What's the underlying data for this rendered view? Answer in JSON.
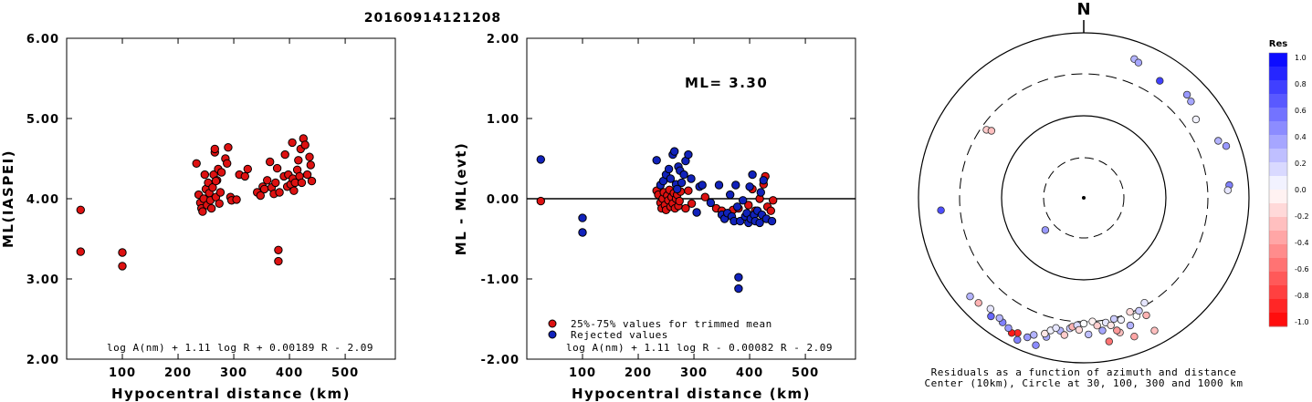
{
  "title": "20160914121208",
  "charts": [
    {
      "type": "scatter",
      "xlabel": "Hypocentral distance (km)",
      "ylabel": "ML(IASPEI)",
      "xlim": [
        0,
        590
      ],
      "ylim": [
        2.0,
        6.0
      ],
      "xticks": [
        100,
        200,
        300,
        400,
        500
      ],
      "xtick_labels": [
        "100",
        "200",
        "300",
        "400",
        "500"
      ],
      "yticks": [
        2.0,
        3.0,
        4.0,
        5.0,
        6.0
      ],
      "ytick_labels": [
        "2.00",
        "3.00",
        "4.00",
        "5.00",
        "6.00"
      ],
      "formula": "log A(nm) + 1.11 log R + 0.00189 R - 2.09",
      "points": [
        [
          25,
          3.86
        ],
        [
          25,
          3.34
        ],
        [
          100,
          3.33
        ],
        [
          100,
          3.16
        ],
        [
          233,
          4.44
        ],
        [
          237,
          4.05
        ],
        [
          240,
          3.95
        ],
        [
          242,
          3.88
        ],
        [
          244,
          3.84
        ],
        [
          246,
          4.0
        ],
        [
          248,
          4.3
        ],
        [
          250,
          4.12
        ],
        [
          252,
          3.92
        ],
        [
          254,
          4.2
        ],
        [
          256,
          4.07
        ],
        [
          258,
          3.98
        ],
        [
          260,
          3.88
        ],
        [
          262,
          4.14
        ],
        [
          264,
          4.3
        ],
        [
          266,
          4.58
        ],
        [
          266,
          4.62
        ],
        [
          268,
          4.02
        ],
        [
          270,
          4.23
        ],
        [
          272,
          4.37
        ],
        [
          274,
          3.94
        ],
        [
          276,
          4.08
        ],
        [
          278,
          4.33
        ],
        [
          268,
          4.22
        ],
        [
          285,
          4.5
        ],
        [
          288,
          4.44
        ],
        [
          290,
          4.64
        ],
        [
          294,
          4.02
        ],
        [
          296,
          3.98
        ],
        [
          305,
          3.99
        ],
        [
          310,
          4.3
        ],
        [
          320,
          4.28
        ],
        [
          325,
          4.37
        ],
        [
          342,
          4.08
        ],
        [
          348,
          4.04
        ],
        [
          352,
          4.15
        ],
        [
          355,
          4.12
        ],
        [
          360,
          4.23
        ],
        [
          365,
          4.46
        ],
        [
          368,
          4.14
        ],
        [
          372,
          4.06
        ],
        [
          375,
          4.2
        ],
        [
          378,
          4.38
        ],
        [
          380,
          3.36
        ],
        [
          380,
          3.22
        ],
        [
          382,
          4.08
        ],
        [
          390,
          4.28
        ],
        [
          392,
          4.55
        ],
        [
          396,
          4.15
        ],
        [
          398,
          4.3
        ],
        [
          402,
          4.18
        ],
        [
          405,
          4.7
        ],
        [
          406,
          4.25
        ],
        [
          408,
          4.1
        ],
        [
          410,
          4.2
        ],
        [
          414,
          4.36
        ],
        [
          416,
          4.48
        ],
        [
          418,
          4.28
        ],
        [
          420,
          4.62
        ],
        [
          422,
          4.2
        ],
        [
          425,
          4.75
        ],
        [
          428,
          4.67
        ],
        [
          432,
          4.3
        ],
        [
          436,
          4.52
        ],
        [
          438,
          4.42
        ],
        [
          440,
          4.22
        ]
      ]
    },
    {
      "type": "scatter",
      "xlabel": "Hypocentral distance (km)",
      "ylabel": "ML - ML(evt)",
      "xlim": [
        0,
        590
      ],
      "ylim": [
        -2.0,
        2.0
      ],
      "xticks": [
        100,
        200,
        300,
        400,
        500
      ],
      "xtick_labels": [
        "100",
        "200",
        "300",
        "400",
        "500"
      ],
      "yticks": [
        -2.0,
        -1.0,
        0.0,
        1.0,
        2.0
      ],
      "ytick_labels": [
        "-2.00",
        "-1.00",
        "0.00",
        "1.00",
        "2.00"
      ],
      "annotation": "ML= 3.30",
      "legend": [
        "25%-75% values for trimmed mean",
        "Rejected values"
      ],
      "formula": "log A(nm) + 1.11 log R - 0.00082 R - 2.09",
      "series": [
        {
          "color": "#dd1111",
          "points": [
            [
              25,
              -0.03
            ],
            [
              233,
              0.1
            ],
            [
              236,
              0.05
            ],
            [
              240,
              -0.05
            ],
            [
              242,
              -0.12
            ],
            [
              244,
              0.0
            ],
            [
              246,
              0.08
            ],
            [
              248,
              -0.08
            ],
            [
              250,
              -0.14
            ],
            [
              252,
              0.04
            ],
            [
              254,
              -0.02
            ],
            [
              256,
              0.11
            ],
            [
              258,
              -0.1
            ],
            [
              260,
              0.02
            ],
            [
              262,
              -0.06
            ],
            [
              264,
              0.07
            ],
            [
              266,
              -0.12
            ],
            [
              268,
              0.0
            ],
            [
              270,
              0.05
            ],
            [
              272,
              -0.09
            ],
            [
              274,
              -0.03
            ],
            [
              276,
              0.09
            ],
            [
              285,
              -0.12
            ],
            [
              290,
              0.1
            ],
            [
              296,
              -0.06
            ],
            [
              320,
              0.02
            ],
            [
              340,
              -0.12
            ],
            [
              350,
              -0.15
            ],
            [
              360,
              -0.18
            ],
            [
              370,
              -0.14
            ],
            [
              380,
              -0.12
            ],
            [
              398,
              -0.08
            ],
            [
              405,
              0.12
            ],
            [
              410,
              -0.15
            ],
            [
              418,
              0.0
            ],
            [
              425,
              0.18
            ],
            [
              428,
              0.28
            ],
            [
              432,
              -0.1
            ],
            [
              438,
              -0.15
            ],
            [
              442,
              -0.02
            ]
          ]
        },
        {
          "color": "#1122bb",
          "points": [
            [
              25,
              0.49
            ],
            [
              100,
              -0.24
            ],
            [
              100,
              -0.42
            ],
            [
              233,
              0.48
            ],
            [
              240,
              0.17
            ],
            [
              245,
              0.22
            ],
            [
              250,
              0.3
            ],
            [
              255,
              0.37
            ],
            [
              258,
              0.25
            ],
            [
              262,
              0.55
            ],
            [
              265,
              0.59
            ],
            [
              268,
              0.18
            ],
            [
              270,
              0.12
            ],
            [
              272,
              0.4
            ],
            [
              275,
              0.35
            ],
            [
              278,
              0.2
            ],
            [
              282,
              0.3
            ],
            [
              285,
              0.47
            ],
            [
              290,
              0.55
            ],
            [
              295,
              0.25
            ],
            [
              305,
              -0.17
            ],
            [
              310,
              0.15
            ],
            [
              315,
              0.17
            ],
            [
              330,
              -0.05
            ],
            [
              345,
              0.17
            ],
            [
              350,
              -0.2
            ],
            [
              355,
              -0.25
            ],
            [
              360,
              -0.18
            ],
            [
              365,
              0.05
            ],
            [
              368,
              -0.22
            ],
            [
              372,
              -0.28
            ],
            [
              375,
              0.17
            ],
            [
              378,
              -0.1
            ],
            [
              380,
              -0.98
            ],
            [
              380,
              -1.12
            ],
            [
              383,
              -0.28
            ],
            [
              388,
              -0.02
            ],
            [
              392,
              -0.22
            ],
            [
              395,
              -0.18
            ],
            [
              398,
              -0.3
            ],
            [
              400,
              0.15
            ],
            [
              402,
              -0.25
            ],
            [
              405,
              0.3
            ],
            [
              408,
              -0.2
            ],
            [
              410,
              -0.28
            ],
            [
              414,
              -0.15
            ],
            [
              418,
              -0.3
            ],
            [
              420,
              0.08
            ],
            [
              422,
              -0.2
            ],
            [
              425,
              0.23
            ],
            [
              430,
              -0.25
            ],
            [
              440,
              -0.28
            ]
          ]
        }
      ]
    }
  ],
  "polar": {
    "north_label": "N",
    "caption": [
      "Residuals as a function of azimuth and distance",
      "Center (10km), Circle at 30, 100, 300 and 1000 km"
    ],
    "stations": [
      [
        198,
        0.45
      ],
      [
        202,
        0.4
      ],
      [
        205,
        0.5
      ],
      [
        200,
        0.3
      ],
      [
        195,
        0.35
      ],
      [
        196,
        -0.1
      ],
      [
        194,
        0.05
      ],
      [
        190,
        0.3
      ],
      [
        188,
        -0.2
      ],
      [
        192,
        0.1
      ],
      [
        186,
        0.2
      ],
      [
        185,
        -0.3
      ],
      [
        183,
        0.15
      ],
      [
        182,
        -0.15
      ],
      [
        180,
        0.0
      ],
      [
        178,
        0.25
      ],
      [
        176,
        -0.05
      ],
      [
        174,
        -0.2
      ],
      [
        172,
        0.35
      ],
      [
        170,
        0.1
      ],
      [
        168,
        -0.1
      ],
      [
        166,
        0.2
      ],
      [
        165,
        -0.25
      ],
      [
        163,
        0.05
      ],
      [
        160,
        0.3
      ],
      [
        158,
        -0.15
      ],
      [
        156,
        0.0
      ],
      [
        154,
        0.2
      ],
      [
        152,
        -0.3
      ],
      [
        150,
        0.1
      ],
      [
        166,
        -0.4
      ],
      [
        206,
        -0.85
      ],
      [
        208,
        -0.9
      ],
      [
        210,
        0.4
      ],
      [
        213,
        0.5
      ],
      [
        215,
        0.3
      ],
      [
        218,
        0.6
      ],
      [
        220,
        0.1
      ],
      [
        225,
        -0.3
      ],
      [
        229,
        0.3
      ],
      [
        152,
        -0.25
      ],
      [
        160,
        -0.35
      ],
      [
        170,
        -0.55
      ],
      [
        20,
        0.3
      ],
      [
        22,
        0.35
      ],
      [
        33,
        0.75
      ],
      [
        45,
        0.4
      ],
      [
        48,
        0.35
      ],
      [
        55,
        0.05
      ],
      [
        67,
        0.3
      ],
      [
        70,
        0.4
      ],
      [
        85,
        0.5
      ],
      [
        87,
        0.1
      ],
      [
        265,
        0.7
      ],
      [
        305,
        -0.2
      ],
      [
        306,
        -0.25
      ],
      [
        230,
        0.4
      ]
    ]
  },
  "colorbar": {
    "title": "Res",
    "tick_labels": [
      "1.0",
      "0.8",
      "0.6",
      "0.4",
      "0.2",
      "0.0",
      "-0.2",
      "-0.4",
      "-0.6",
      "-0.8",
      "-1.0"
    ],
    "max_color": "#0000ff",
    "min_color": "#ff0000"
  }
}
